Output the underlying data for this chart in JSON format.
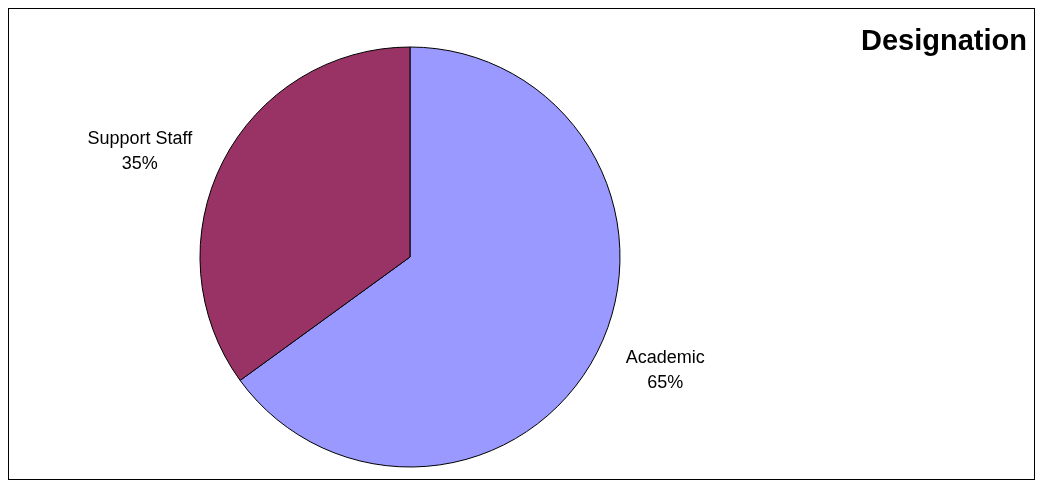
{
  "chart_data": {
    "type": "pie",
    "title": "Designation",
    "categories": [
      "Academic",
      "Support Staff"
    ],
    "values": [
      65,
      35
    ],
    "value_labels": [
      "65%",
      "35%"
    ],
    "colors": [
      "#9999ff",
      "#993366"
    ]
  }
}
